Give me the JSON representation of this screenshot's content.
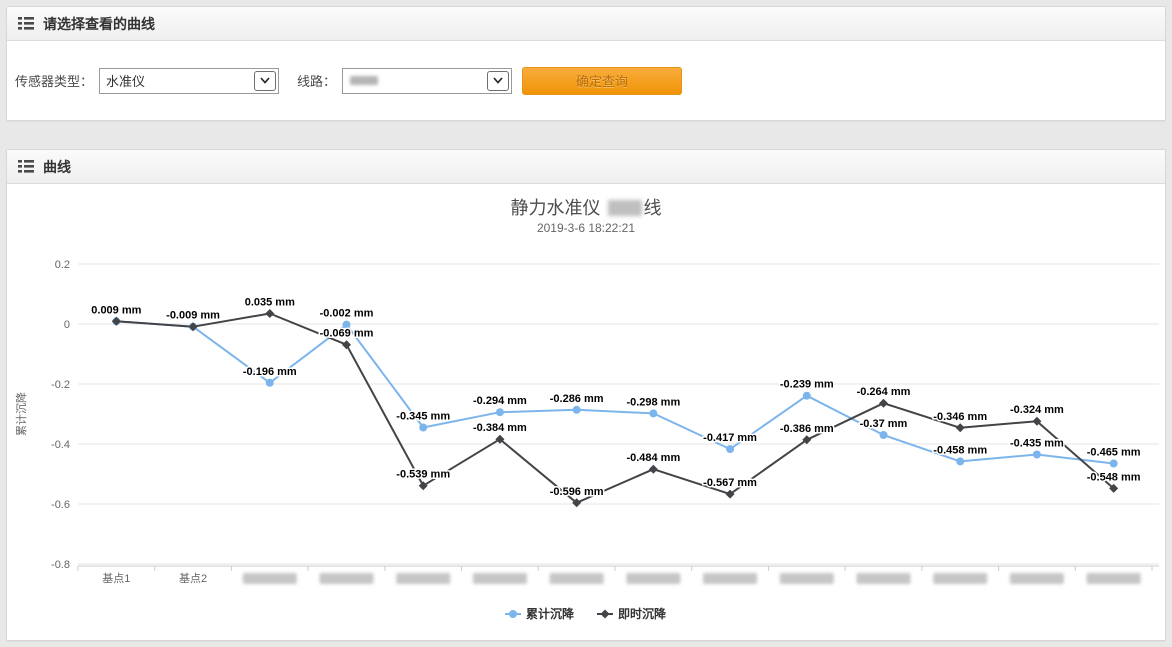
{
  "panels": {
    "select": {
      "title": "请选择查看的曲线",
      "form": {
        "sensor_type": {
          "label": "传感器类型：",
          "value": "水准仪"
        },
        "line": {
          "label": "线路：",
          "value": null,
          "redacted": true
        },
        "submit": {
          "label": "确定查询",
          "color": "#f49d13"
        }
      }
    },
    "chart_panel": {
      "title": "曲线"
    }
  },
  "chart_data": {
    "type": "line",
    "title_prefix": "静力水准仪",
    "title_redacted": true,
    "title_suffix": "线",
    "subtitle": "2019-3-6 18:22:21",
    "ylabel": "累计沉降",
    "unit": " mm",
    "ylim": [
      -0.8,
      0.2
    ],
    "ytick_step": 0.2,
    "grid": true,
    "legend_position": "bottom",
    "categories": [
      "基点1",
      "基点2",
      null,
      null,
      null,
      null,
      null,
      null,
      null,
      null,
      null,
      null,
      null,
      null
    ],
    "series": [
      {
        "name": "累计沉降",
        "color": "#7cb5ec",
        "marker": "circle",
        "values": [
          0.009,
          -0.009,
          -0.196,
          -0.002,
          -0.345,
          -0.294,
          -0.286,
          -0.298,
          -0.417,
          -0.239,
          -0.37,
          -0.458,
          -0.435,
          -0.465
        ]
      },
      {
        "name": "即时沉降",
        "color": "#434348",
        "marker": "diamond",
        "values": [
          0.009,
          -0.009,
          0.035,
          -0.069,
          -0.539,
          -0.384,
          -0.596,
          -0.484,
          -0.567,
          -0.386,
          -0.264,
          -0.346,
          -0.324,
          -0.548
        ]
      }
    ],
    "colors": {
      "gridline": "#e6e6e6",
      "axis_line": "#cccccc",
      "tick_label": "#666666",
      "data_label": "#000000",
      "redacted_box": "#c6c6c6"
    }
  }
}
